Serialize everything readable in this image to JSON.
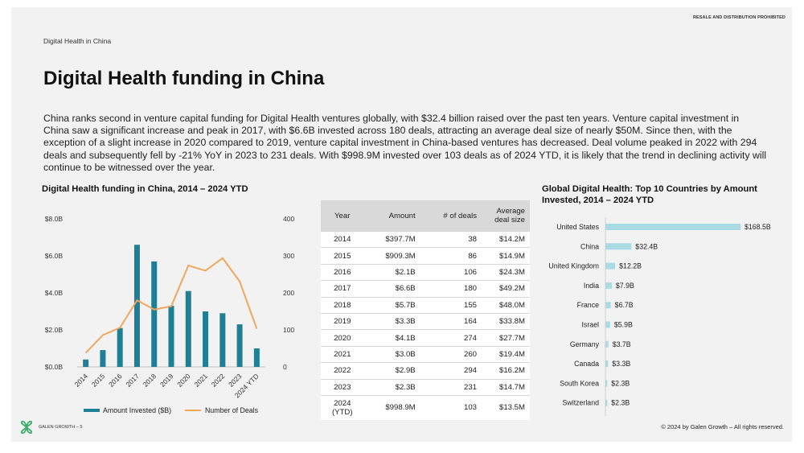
{
  "header": {
    "prohibited": "RESALE AND DISTRIBUTION PROHIBITED",
    "section": "Digital Health in China",
    "title": "Digital Health funding in China",
    "intro": "China ranks second in venture capital funding for Digital Health ventures globally, with $32.4 billion raised over the past ten years. Venture capital investment in China saw a significant increase and peak in 2017, with $6.6B invested across 180 deals, attracting an average deal size of nearly $50M. Since then, with the exception of a slight increase in 2020 compared to 2019, venture capital investment in China-based ventures has decreased. Deal volume peaked in 2022 with 294 deals and subsequently fell by -21% YoY in 2023 to 231 deals. With $998.9M invested over 103 deals as of 2024 YTD, it is likely that the trend in declining activity will continue to be witnessed over the year."
  },
  "colors": {
    "bar": "#1f7f94",
    "line": "#f2a65e",
    "hbar": "#a8dbe3"
  },
  "chart_data": [
    {
      "type": "bar",
      "title": "Digital Health funding in China, 2014 – 2024 YTD",
      "categories": [
        "2014",
        "2015",
        "2016",
        "2017",
        "2018",
        "2019",
        "2020",
        "2021",
        "2022",
        "2023",
        "2024 YTD"
      ],
      "series": [
        {
          "name": "Amount Invested ($B)",
          "type": "bar",
          "axis": "left",
          "values": [
            0.4,
            0.91,
            2.1,
            6.6,
            5.7,
            3.3,
            4.1,
            3.0,
            2.9,
            2.3,
            1.0
          ]
        },
        {
          "name": "Number of Deals",
          "type": "line",
          "axis": "right",
          "values": [
            38,
            86,
            106,
            180,
            155,
            164,
            274,
            260,
            294,
            231,
            103
          ]
        }
      ],
      "ylim_left": [
        0,
        8
      ],
      "yticks_left": [
        "$0.0B",
        "$2.0B",
        "$4.0B",
        "$6.0B",
        "$8.0B"
      ],
      "ylim_right": [
        0,
        400
      ],
      "yticks_right": [
        "0",
        "100",
        "200",
        "300",
        "400"
      ],
      "grid": false,
      "legend": "bottom"
    },
    {
      "type": "table",
      "columns": [
        "Year",
        "Amount",
        "# of deals",
        "Average deal size"
      ],
      "rows": [
        [
          "2014",
          "$397.7M",
          "38",
          "$14.2M"
        ],
        [
          "2015",
          "$909.3M",
          "86",
          "$14.9M"
        ],
        [
          "2016",
          "$2.1B",
          "106",
          "$24.3M"
        ],
        [
          "2017",
          "$6.6B",
          "180",
          "$49.2M"
        ],
        [
          "2018",
          "$5.7B",
          "155",
          "$48.0M"
        ],
        [
          "2019",
          "$3.3B",
          "164",
          "$33.8M"
        ],
        [
          "2020",
          "$4.1B",
          "274",
          "$27.7M"
        ],
        [
          "2021",
          "$3.0B",
          "260",
          "$19.4M"
        ],
        [
          "2022",
          "$2.9B",
          "294",
          "$16.2M"
        ],
        [
          "2023",
          "$2.3B",
          "231",
          "$14.7M"
        ],
        [
          "2024 (YTD)",
          "$998.9M",
          "103",
          "$13.5M"
        ]
      ]
    },
    {
      "type": "bar",
      "orientation": "horizontal",
      "title": "Global Digital Health: Top 10 Countries by Amount Invested, 2014 – 2024 YTD",
      "categories": [
        "United States",
        "China",
        "United Kingdom",
        "India",
        "France",
        "Israel",
        "Germany",
        "Canada",
        "South Korea",
        "Switzerland"
      ],
      "values": [
        168.5,
        32.4,
        12.2,
        7.9,
        6.7,
        5.9,
        3.7,
        3.3,
        2.3,
        2.3
      ],
      "labels": [
        "$168.5B",
        "$32.4B",
        "$12.2B",
        "$7.9B",
        "$6.7B",
        "$5.9B",
        "$3.7B",
        "$3.3B",
        "$2.3B",
        "$2.3B"
      ]
    }
  ],
  "footer": {
    "brand": "GALEN GROWTH – 5",
    "copyright": "© 2024 by Galen Growth – All rights reserved."
  }
}
